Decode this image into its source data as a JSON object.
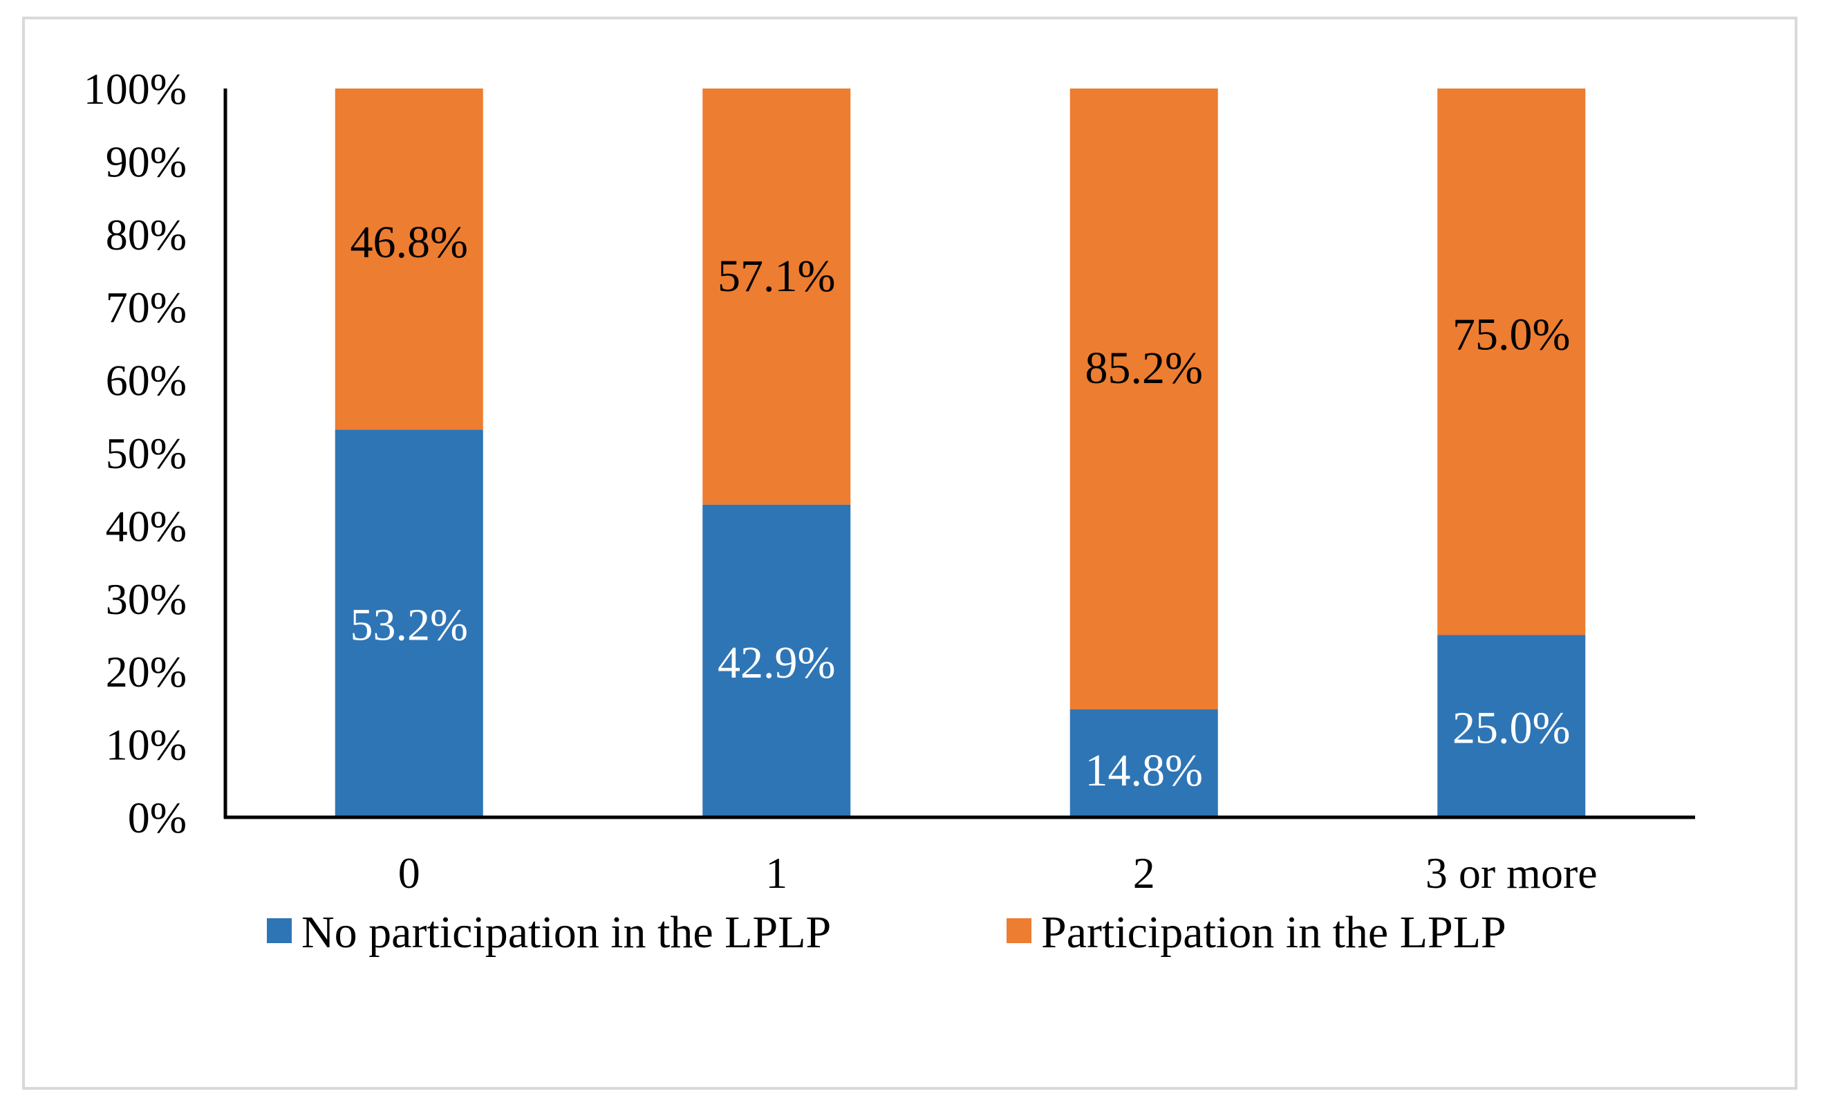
{
  "chart_data": {
    "type": "bar",
    "stacked": true,
    "categories": [
      "0",
      "1",
      "2",
      "3 or more"
    ],
    "series": [
      {
        "name": "No participation in the LPLP",
        "values": [
          53.2,
          42.9,
          14.8,
          25.0
        ],
        "labels": [
          "53.2%",
          "42.9%",
          "14.8%",
          "25.0%"
        ],
        "color": "#2e75b6",
        "label_color": "#ffffff"
      },
      {
        "name": "Participation in the LPLP",
        "values": [
          46.8,
          57.1,
          85.2,
          75.0
        ],
        "labels": [
          "46.8%",
          "57.1%",
          "85.2%",
          "75.0%"
        ],
        "color": "#ed7d31",
        "label_color": "#000000"
      }
    ],
    "ylim": [
      0,
      100
    ],
    "yticks": [
      0,
      10,
      20,
      30,
      40,
      50,
      60,
      70,
      80,
      90,
      100
    ],
    "ytick_labels": [
      "0%",
      "10%",
      "20%",
      "30%",
      "40%",
      "50%",
      "60%",
      "70%",
      "80%",
      "90%",
      "100%"
    ],
    "title": "",
    "xlabel": "",
    "ylabel": "",
    "grid": false,
    "legend_position": "bottom"
  }
}
